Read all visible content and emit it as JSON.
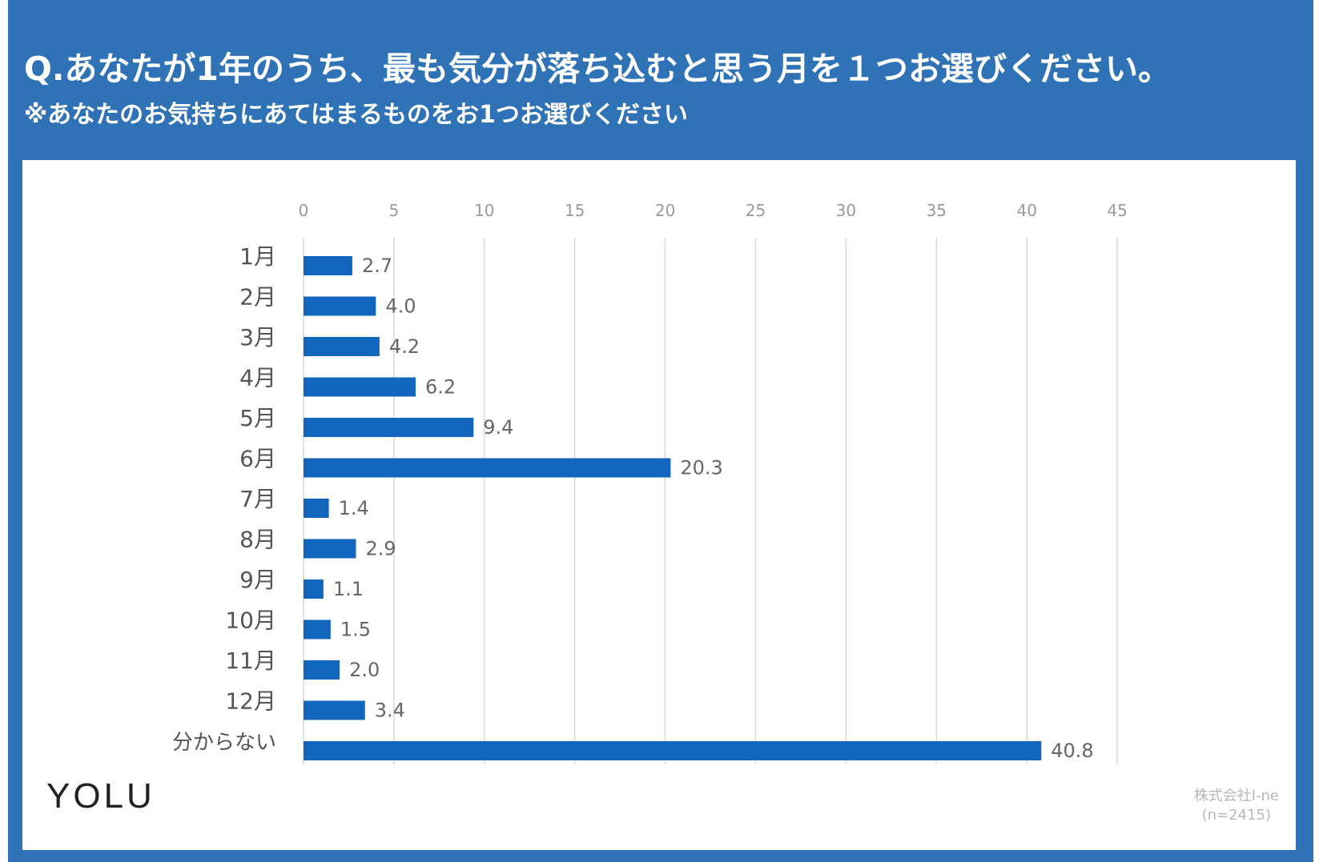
{
  "title": "Q.あなたが1年のうち、最も気分が落ち込むと思う月を１つお選びください。",
  "subtitle": "※あなたのお気持ちにあてはまるものをお1つお選びください",
  "brand": "YOLU",
  "credit": {
    "line1": "株式会社I-ne",
    "line2": "(n=2415)"
  },
  "colors": {
    "frame": "#2f72b5",
    "bar": "#1266bd",
    "grid": "#d9d9d9"
  },
  "chart_data": {
    "type": "bar",
    "orientation": "horizontal",
    "categories": [
      "1月",
      "2月",
      "3月",
      "4月",
      "5月",
      "6月",
      "7月",
      "8月",
      "9月",
      "10月",
      "11月",
      "12月",
      "分からない"
    ],
    "values": [
      2.7,
      4.0,
      4.2,
      6.2,
      9.4,
      20.3,
      1.4,
      2.9,
      1.1,
      1.5,
      2.0,
      3.4,
      40.8
    ],
    "value_labels": [
      "2.7",
      "4.0",
      "4.2",
      "6.2",
      "9.4",
      "20.3",
      "1.4",
      "2.9",
      "1.1",
      "1.5",
      "2.0",
      "3.4",
      "40.8"
    ],
    "xlim": [
      0,
      45
    ],
    "xticks": [
      0,
      5,
      10,
      15,
      20,
      25,
      30,
      35,
      40,
      45
    ],
    "xtick_labels": [
      "0",
      "5",
      "10",
      "15",
      "20",
      "25",
      "30",
      "35",
      "40",
      "45"
    ],
    "axis_position": "top",
    "grid": true
  }
}
